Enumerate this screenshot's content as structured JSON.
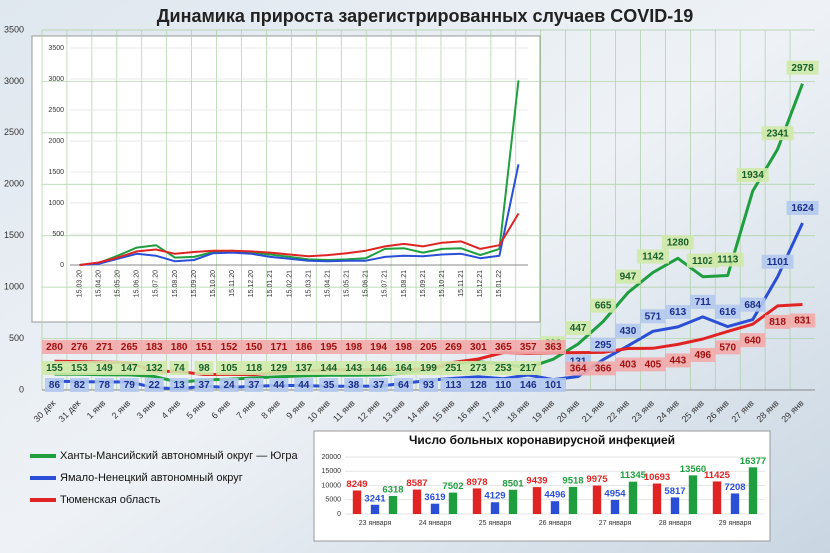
{
  "chart_data": [
    {
      "type": "line",
      "title": "Динамика прироста зарегистрированных случаев COVID-19",
      "categories": [
        "30 дек",
        "31 дек",
        "1 янв",
        "2 янв",
        "3 янв",
        "4 янв",
        "5 янв",
        "6 янв",
        "7 янв",
        "8 янв",
        "9 янв",
        "10 янв",
        "11 янв",
        "12 янв",
        "13 янв",
        "14 янв",
        "15 янв",
        "16 янв",
        "17 янв",
        "18 янв",
        "19 янв",
        "20 янв",
        "21 янв",
        "22 янв",
        "23 янв",
        "24 янв",
        "25 янв",
        "26 янв",
        "27 янв",
        "28 янв",
        "29 янв"
      ],
      "series": [
        {
          "name": "Ханты-Мансийский автономный округ — Югра",
          "color": "#1f9e3f",
          "values": [
            155,
            153,
            149,
            147,
            132,
            74,
            98,
            105,
            118,
            129,
            137,
            144,
            143,
            146,
            164,
            199,
            251,
            273,
            253,
            217,
            299,
            447,
            665,
            947,
            1142,
            1280,
            1102,
            1113,
            1934,
            2341,
            2978
          ]
        },
        {
          "name": "Ямало-Ненецкий автономный округ",
          "color": "#2a4fd6",
          "values": [
            86,
            82,
            78,
            79,
            22,
            13,
            37,
            24,
            37,
            44,
            44,
            35,
            38,
            37,
            64,
            93,
            113,
            128,
            110,
            146,
            101,
            131,
            295,
            430,
            571,
            613,
            711,
            616,
            684,
            1101,
            1624
          ]
        },
        {
          "name": "Тюменская область",
          "color": "#e02424",
          "values": [
            280,
            276,
            271,
            265,
            183,
            180,
            151,
            152,
            150,
            171,
            186,
            195,
            198,
            194,
            198,
            205,
            269,
            301,
            365,
            357,
            363,
            364,
            366,
            403,
            405,
            443,
            496,
            570,
            640,
            818,
            831
          ]
        }
      ],
      "ylim": [
        0,
        3500
      ],
      "yticks": [
        0,
        500,
        1000,
        1500,
        2000,
        2500,
        3000,
        3500
      ],
      "grid": true
    },
    {
      "type": "line",
      "categories": [
        "15.03.20",
        "15.04.20",
        "15.05.20",
        "15.06.20",
        "15.07.20",
        "15.08.20",
        "15.09.20",
        "15.10.20",
        "15.11.20",
        "15.12.20",
        "15.01.21",
        "15.02.21",
        "15.03.21",
        "15.04.21",
        "15.05.21",
        "15.06.21",
        "15.07.21",
        "15.08.21",
        "15.09.21",
        "15.10.21",
        "15.11.21",
        "15.12.21",
        "15.01.22",
        null
      ],
      "series": [
        {
          "color": "#1f9e3f",
          "values": [
            0,
            30,
            150,
            280,
            320,
            120,
            130,
            210,
            230,
            200,
            170,
            130,
            90,
            80,
            90,
            110,
            260,
            270,
            200,
            260,
            270,
            160,
            260,
            2978
          ]
        },
        {
          "color": "#2a4fd6",
          "values": [
            0,
            20,
            100,
            180,
            150,
            60,
            80,
            190,
            200,
            180,
            130,
            100,
            70,
            60,
            70,
            70,
            130,
            150,
            140,
            170,
            180,
            110,
            150,
            1624
          ]
        },
        {
          "color": "#e02424",
          "values": [
            0,
            40,
            120,
            220,
            250,
            180,
            210,
            230,
            230,
            220,
            200,
            170,
            140,
            160,
            190,
            230,
            300,
            340,
            300,
            360,
            380,
            260,
            320,
            831
          ]
        }
      ],
      "ylim": [
        0,
        3500
      ],
      "yticks": [
        0,
        500,
        1000,
        1500,
        2000,
        2500,
        3000,
        3500
      ],
      "grid": true
    },
    {
      "type": "bar",
      "title": "Число больных коронавирусной  инфекцией",
      "categories": [
        "23 января",
        "24 января",
        "25 января",
        "26 января",
        "27 января",
        "28 января",
        "29 января"
      ],
      "series": [
        {
          "color": "#e02424",
          "values": [
            8249,
            8587,
            8978,
            9439,
            9975,
            10693,
            11425
          ]
        },
        {
          "color": "#2a4fd6",
          "values": [
            3241,
            3619,
            4129,
            4496,
            4954,
            5817,
            7208
          ]
        },
        {
          "color": "#1f9e3f",
          "values": [
            6318,
            7502,
            8501,
            9518,
            11345,
            13560,
            16377
          ]
        }
      ],
      "ylim": [
        0,
        20000
      ],
      "yticks": [
        0,
        5000,
        10000,
        15000,
        20000
      ],
      "grid": true
    }
  ]
}
